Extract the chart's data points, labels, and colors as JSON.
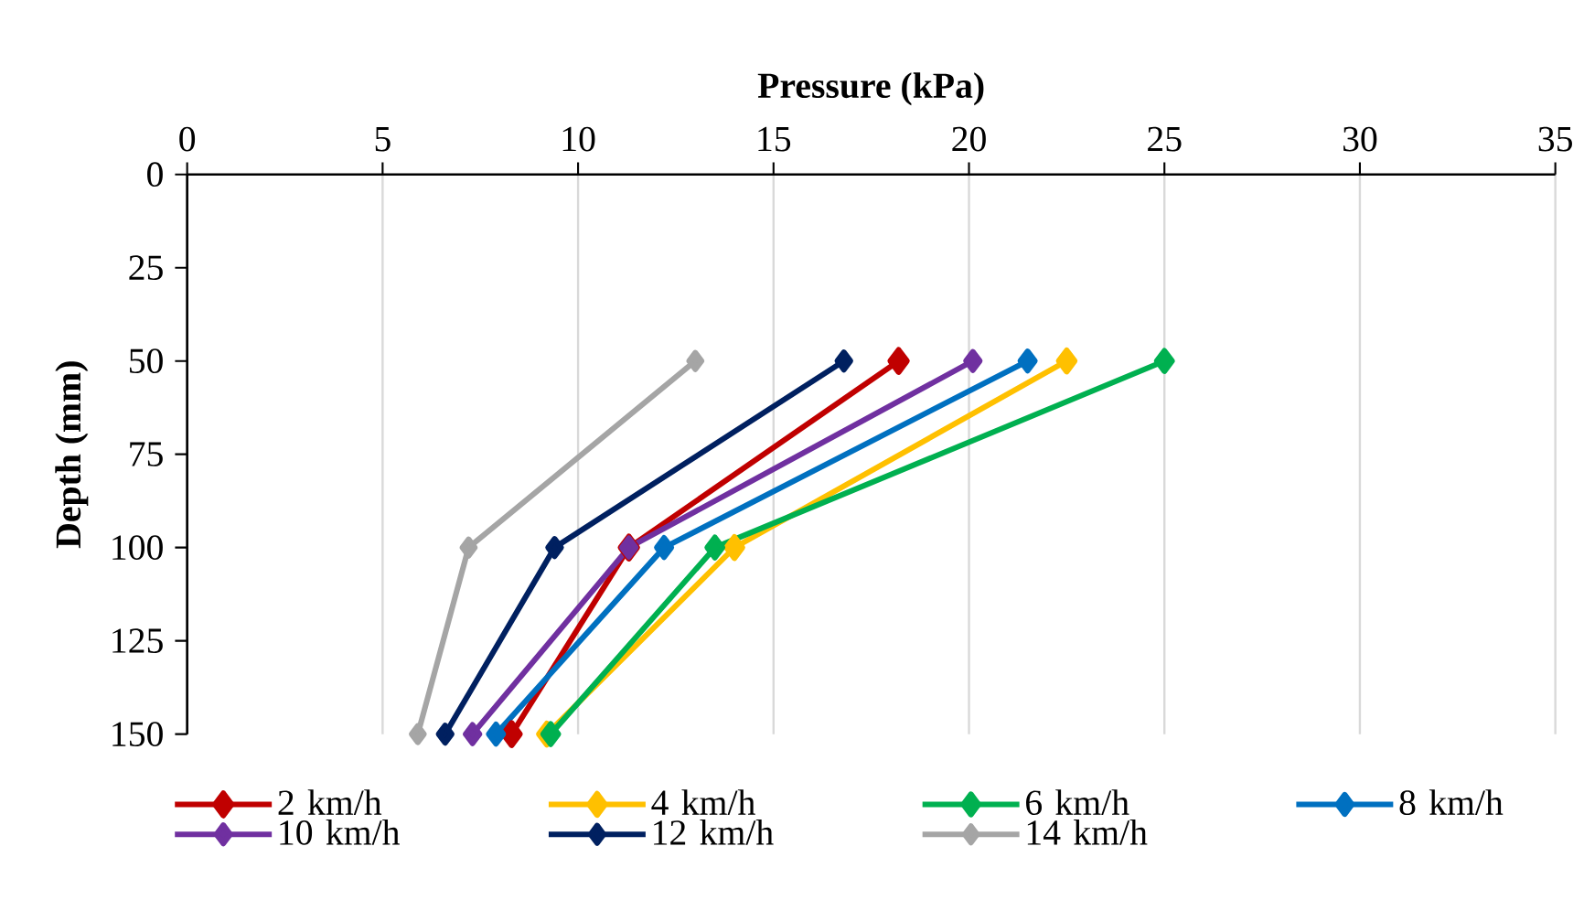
{
  "chart_data": {
    "type": "line",
    "xlabel": "Pressure (kPa)",
    "ylabel": "Depth (mm)",
    "xlim": [
      0,
      35
    ],
    "xticks": [
      0,
      5,
      10,
      15,
      20,
      25,
      30,
      35
    ],
    "ylim": [
      150,
      0
    ],
    "yticks": [
      0,
      25,
      50,
      75,
      100,
      125,
      150
    ],
    "grid": "x",
    "legend": "bottom",
    "marker": "diamond",
    "line_style": "solid",
    "series": [
      {
        "name": "2 km/h",
        "color": "#c00000",
        "x": [
          18.2,
          11.3,
          8.3
        ],
        "values": [
          50,
          100,
          150
        ]
      },
      {
        "name": "4 km/h",
        "color": "#ffc000",
        "x": [
          22.5,
          14.0,
          9.2
        ],
        "values": [
          50,
          100,
          150
        ]
      },
      {
        "name": "6 km/h",
        "color": "#00b050",
        "x": [
          25.0,
          13.5,
          9.3
        ],
        "values": [
          50,
          100,
          150
        ]
      },
      {
        "name": "8 km/h",
        "color": "#0070c0",
        "x": [
          21.5,
          12.2,
          7.9
        ],
        "values": [
          50,
          100,
          150
        ]
      },
      {
        "name": "10 km/h",
        "color": "#7030a0",
        "x": [
          20.1,
          11.3,
          7.3
        ],
        "values": [
          50,
          100,
          150
        ]
      },
      {
        "name": "12 km/h",
        "color": "#002060",
        "x": [
          16.8,
          9.4,
          6.6
        ],
        "values": [
          50,
          100,
          150
        ]
      },
      {
        "name": "14 km/h",
        "color": "#a5a5a5",
        "x": [
          13.0,
          7.2,
          5.9
        ],
        "values": [
          50,
          100,
          150
        ]
      }
    ]
  }
}
